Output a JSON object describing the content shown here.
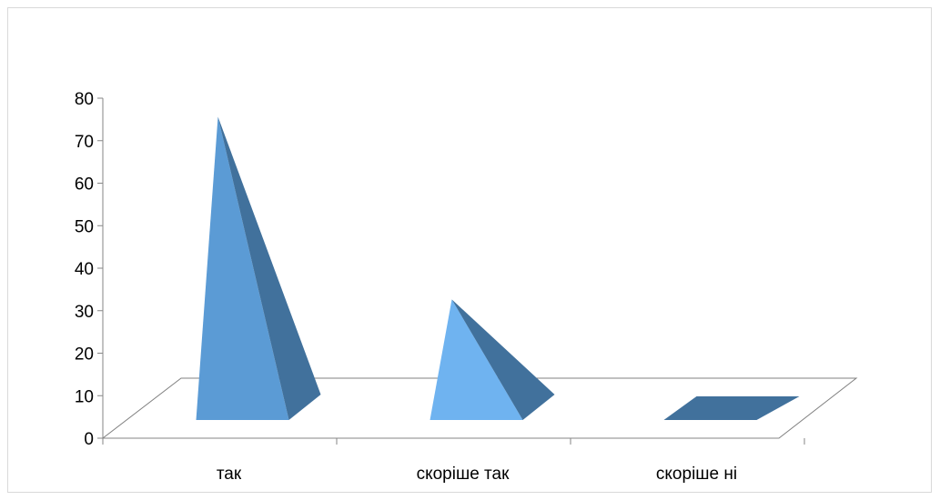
{
  "chart_data": {
    "type": "bar",
    "bar_shape": "3d-pyramid",
    "categories": [
      "так",
      "скоріше так",
      "скоріше ні"
    ],
    "series": [
      {
        "values": [
          78,
          31,
          0
        ]
      }
    ],
    "ylim": [
      0,
      80
    ],
    "yticks": [
      0,
      10,
      20,
      30,
      40,
      50,
      60,
      70,
      80
    ],
    "grid": false,
    "legend": "none",
    "colors": {
      "front": "#5b9bd5",
      "front_light": "#6fb3f0",
      "side": "#41719c",
      "floor_line": "#808080",
      "axis": "#868686"
    }
  }
}
